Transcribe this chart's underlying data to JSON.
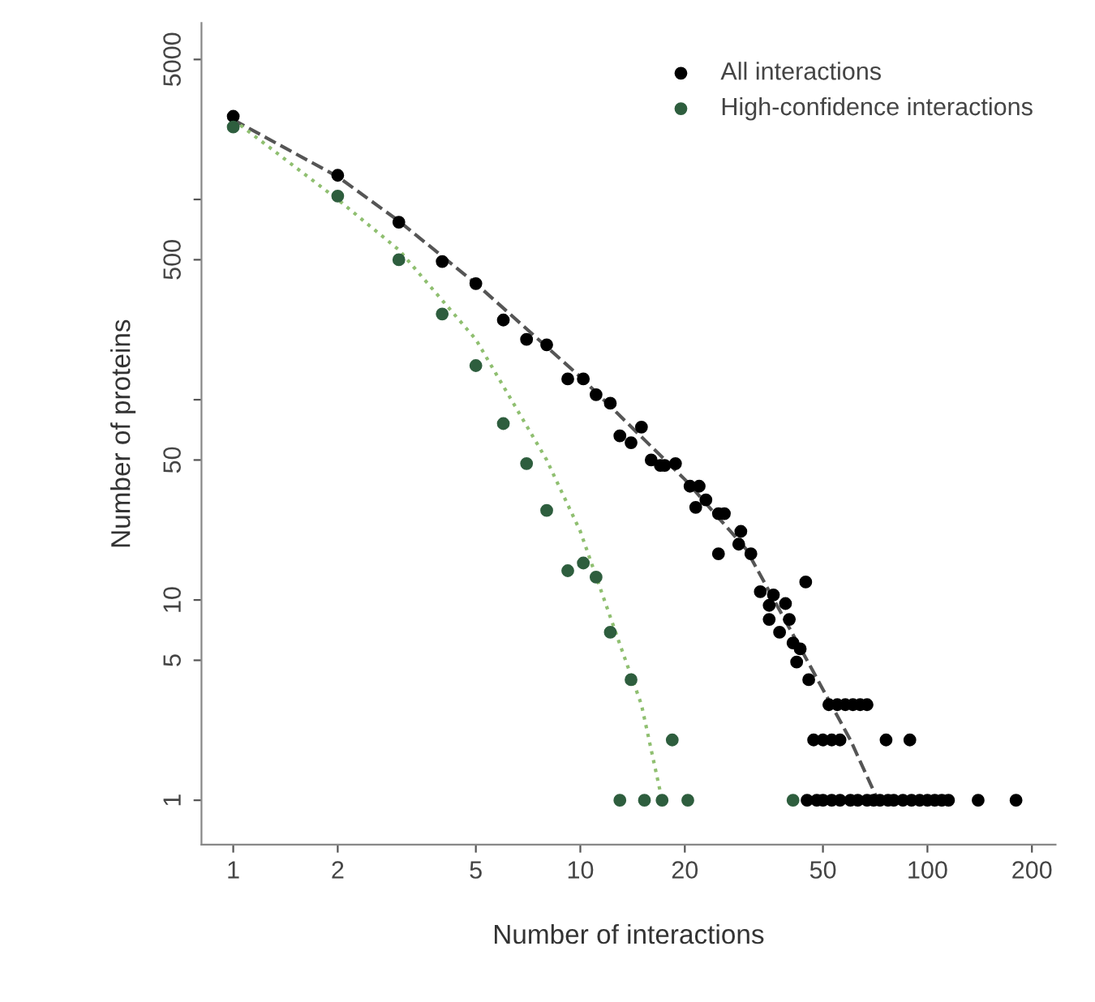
{
  "chart_data": {
    "type": "scatter",
    "xlabel": "Number of interactions",
    "ylabel": "Number of proteins",
    "log": "xy",
    "xlim": [
      0.81,
      234
    ],
    "ylim": [
      0.6,
      7600
    ],
    "xticks": [
      1,
      2,
      5,
      10,
      20,
      50,
      100,
      200
    ],
    "yticks": [
      1,
      5,
      10,
      50,
      {
        "value": 100,
        "label": null
      },
      500,
      {
        "value": 1000,
        "label": null
      },
      5000
    ],
    "grid": false,
    "legend": "top right",
    "marker": "circle",
    "series": [
      {
        "name": "All interactions",
        "color": "#000000",
        "x": [
          1,
          2,
          3,
          4,
          5,
          6,
          7,
          8,
          9.2,
          10.2,
          11.1,
          12.2,
          13,
          14,
          15,
          16,
          17,
          17.5,
          18.8,
          20.7,
          21.5,
          22,
          23,
          25,
          26,
          28.6,
          29,
          25,
          31,
          44.6,
          33,
          36,
          35,
          39,
          35,
          40,
          37.5,
          41,
          43,
          42,
          45.5,
          52,
          55,
          58,
          61,
          64,
          67,
          47,
          50,
          53,
          56,
          76,
          89,
          45,
          48,
          50,
          53,
          56,
          60,
          63,
          67,
          70,
          73,
          77,
          80,
          85,
          90,
          95,
          100,
          105,
          110,
          115,
          140,
          180
        ],
        "values": [
          2600,
          1320,
          770,
          490,
          380,
          250,
          200,
          188,
          127,
          127,
          106,
          96,
          66,
          61,
          73,
          50,
          47,
          47,
          48,
          37,
          29,
          37,
          31.6,
          27,
          27,
          19,
          22,
          17,
          17,
          12.3,
          11,
          10.6,
          9.4,
          9.6,
          8,
          8,
          6.9,
          6.1,
          5.7,
          4.9,
          4,
          3,
          3,
          3,
          3,
          3,
          3,
          2,
          2,
          2,
          2,
          2,
          2,
          1,
          1,
          1,
          1,
          1,
          1,
          1,
          1,
          1,
          1,
          1,
          1,
          1,
          1,
          1,
          1,
          1,
          1,
          1,
          1,
          1
        ]
      },
      {
        "name": "High-confidence interactions",
        "color": "#2e5e3e",
        "x": [
          1,
          2,
          3,
          4,
          5,
          6,
          7,
          8,
          9.2,
          10.2,
          11.1,
          12.2,
          14,
          18.4,
          13,
          15.3,
          17.2,
          20.4,
          41
        ],
        "values": [
          2300,
          1040,
          500,
          268,
          148,
          76,
          48,
          28,
          14,
          15.3,
          13,
          6.9,
          4,
          2,
          1,
          1,
          1,
          1,
          1
        ]
      },
      {
        "type": "line",
        "color": "#555555",
        "line_style": "dashed",
        "marker": "none",
        "x": [
          1,
          2,
          3,
          5,
          10,
          20,
          30,
          45,
          60,
          72
        ],
        "values": [
          2500,
          1300,
          780,
          380,
          130,
          40,
          18,
          5,
          2,
          1
        ]
      },
      {
        "type": "line",
        "color": "#8fbf70",
        "line_style": "dotted",
        "marker": "none",
        "x": [
          1,
          2,
          3,
          5,
          8,
          10,
          13,
          15,
          17
        ],
        "values": [
          2500,
          1000,
          560,
          200,
          50,
          22,
          6,
          3,
          1.1
        ]
      }
    ]
  }
}
